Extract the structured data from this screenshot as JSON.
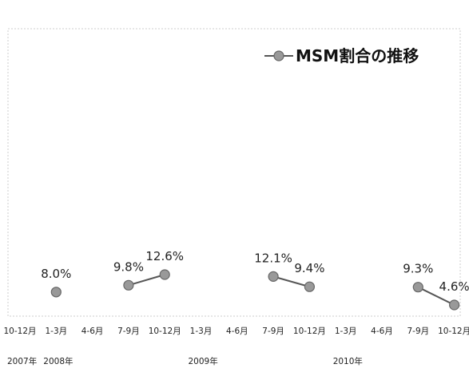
{
  "chart_data": {
    "type": "line",
    "title": "",
    "xlabel": "",
    "ylabel": "",
    "categories": [
      "10-12月",
      "1-3月",
      "4-6月",
      "7-9月",
      "10-12月",
      "1-3月",
      "4-6月",
      "7-9月",
      "10-12月",
      "1-3月",
      "4-6月",
      "7-9月",
      "10-12月"
    ],
    "year_labels": [
      {
        "label": "2007年",
        "category_index": 0
      },
      {
        "label": "2008年",
        "category_index": 1
      },
      {
        "label": "2009年",
        "category_index": 5
      },
      {
        "label": "2010年",
        "category_index": 9
      }
    ],
    "series": [
      {
        "name": "MSM割合の推移",
        "values": [
          null,
          8.0,
          null,
          9.8,
          12.6,
          null,
          null,
          12.1,
          9.4,
          null,
          null,
          9.3,
          4.6
        ],
        "data_labels": [
          null,
          "8.0%",
          null,
          "9.8%",
          "12.6%",
          null,
          null,
          "12.1%",
          "9.4%",
          null,
          null,
          "9.3%",
          "4.6%"
        ]
      }
    ],
    "ylim": [
      0,
      100
    ],
    "grid": false,
    "legend_position": "top-right",
    "colors": {
      "line": "#555555",
      "marker_fill": "#999999",
      "marker_stroke": "#666666",
      "frame": "#cccccc"
    }
  }
}
